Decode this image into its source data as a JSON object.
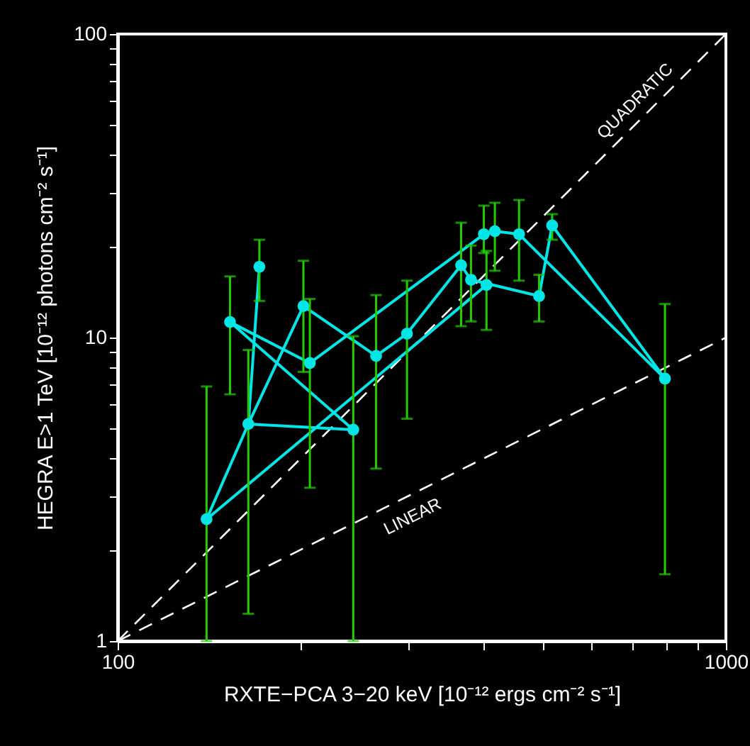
{
  "chart_data": {
    "type": "scatter",
    "xlabel": "RXTE−PCA 3−20 keV [10⁻¹² ergs cm⁻² s⁻¹]",
    "ylabel": "HEGRA E>1 TeV [10⁻¹² photons cm⁻² s⁻¹]",
    "log": "xy",
    "xlim": [
      100,
      1000
    ],
    "xticks": [
      100,
      {
        "value": 200,
        "label": null
      },
      {
        "value": 300,
        "label": null
      },
      {
        "value": 400,
        "label": null
      },
      {
        "value": 500,
        "label": null
      },
      {
        "value": 600,
        "label": null
      },
      {
        "value": 700,
        "label": null
      },
      {
        "value": 800,
        "label": null
      },
      {
        "value": 900,
        "label": null
      },
      1000
    ],
    "ylim": [
      1,
      100
    ],
    "yticks": [
      1,
      {
        "value": 2,
        "label": null
      },
      {
        "value": 3,
        "label": null
      },
      {
        "value": 4,
        "label": null
      },
      {
        "value": 5,
        "label": null
      },
      {
        "value": 6,
        "label": null
      },
      {
        "value": 7,
        "label": null
      },
      {
        "value": 8,
        "label": null
      },
      {
        "value": 9,
        "label": null
      },
      10,
      {
        "value": 20,
        "label": null
      },
      {
        "value": 30,
        "label": null
      },
      {
        "value": 40,
        "label": null
      },
      {
        "value": 50,
        "label": null
      },
      {
        "value": 60,
        "label": null
      },
      {
        "value": 70,
        "label": null
      },
      {
        "value": 80,
        "label": null
      },
      {
        "value": 90,
        "label": null
      },
      100
    ],
    "series": [
      {
        "name": "QUADRATIC",
        "type": "line",
        "line_style": "dashed",
        "color": "#ffffff",
        "x": [
          100,
          1000
        ],
        "values": [
          1,
          100
        ]
      },
      {
        "name": "LINEAR",
        "type": "line",
        "line_style": "dashed",
        "color": "#ffffff",
        "x": [
          100,
          1000
        ],
        "values": [
          1,
          10
        ]
      },
      {
        "type": "line",
        "color": "#00e5e5",
        "marker": "none",
        "x": [
          404,
          140,
          164,
          202,
          266,
          299,
          367,
          381,
          493,
          518,
          794,
          457,
          417,
          400,
          207,
          153,
          244,
          164,
          171
        ],
        "values": [
          14.9,
          2.52,
          5.19,
          12.7,
          8.7,
          10.3,
          17.3,
          15.5,
          13.7,
          23.4,
          7.32,
          21.9,
          22.4,
          21.9,
          8.24,
          11.25,
          4.97,
          5.19,
          17.1
        ]
      },
      {
        "marker": "circle",
        "color": "#00e5e5",
        "x": [
          140,
          164,
          171,
          153,
          202,
          207,
          244,
          266,
          299,
          367,
          381,
          404,
          400,
          417,
          457,
          493,
          518,
          794
        ],
        "values": [
          2.52,
          5.19,
          17.1,
          11.25,
          12.7,
          8.24,
          4.97,
          8.7,
          10.3,
          17.3,
          15.5,
          14.9,
          21.9,
          22.4,
          21.9,
          13.7,
          23.4,
          7.32
        ],
        "errors": [
          [
            1,
            6.9
          ],
          [
            1.23,
            9.1
          ],
          [
            13.2,
            21
          ],
          [
            6.5,
            15.9
          ],
          [
            7.7,
            17.9
          ],
          [
            3.2,
            13.4
          ],
          [
            1,
            10.1
          ],
          [
            3.7,
            13.8
          ],
          [
            5.4,
            15.4
          ],
          [
            10.9,
            23.9
          ],
          [
            11.3,
            20.1
          ],
          [
            10.6,
            19.3
          ],
          [
            19,
            27.2
          ],
          [
            16.6,
            27.8
          ],
          [
            15.4,
            28.4
          ],
          [
            11.3,
            16.1
          ],
          [
            21,
            25.5
          ],
          [
            1.66,
            12.9
          ]
        ]
      }
    ]
  }
}
